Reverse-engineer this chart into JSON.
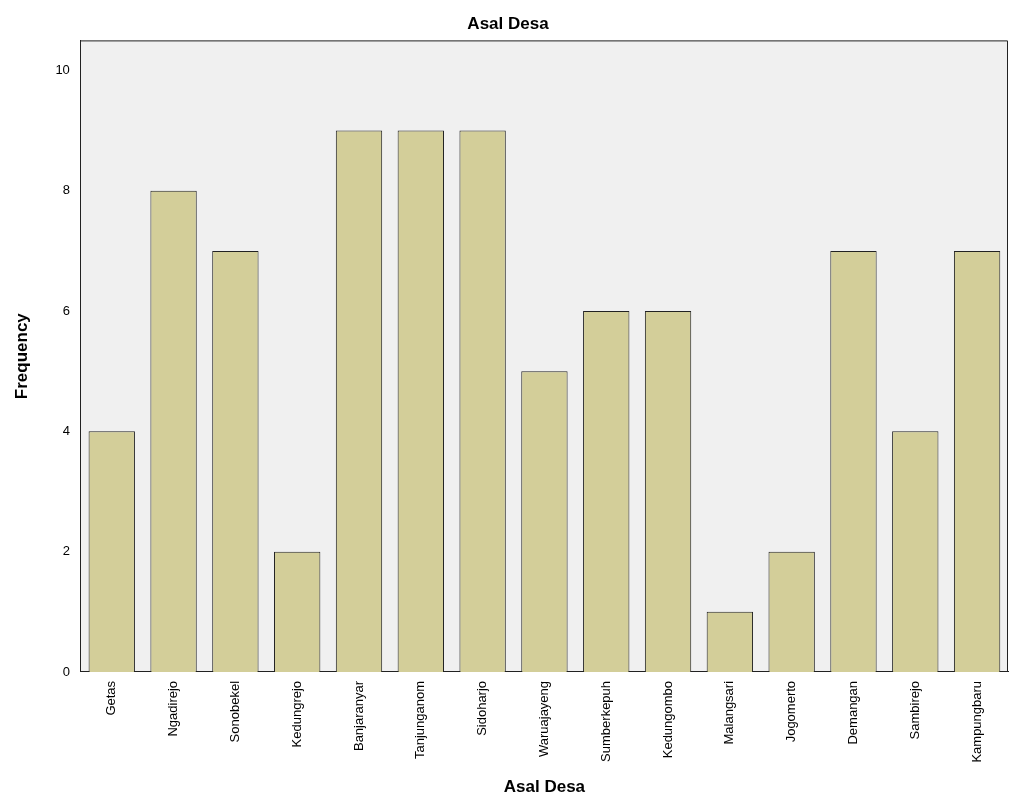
{
  "chart_data": {
    "type": "bar",
    "title": "Asal Desa",
    "xlabel": "Asal Desa",
    "ylabel": "Frequency",
    "categories": [
      "Getas",
      "Ngadirejo",
      "Sonobekel",
      "Kedungrejo",
      "Banjaranyar",
      "Tanjunganom",
      "Sidoharjo",
      "Waruajayeng",
      "Sumberkepuh",
      "Kedungombo",
      "Malangsari",
      "Jogomerto",
      "Demangan",
      "Sambirejo",
      "Kampungbaru"
    ],
    "values": [
      4,
      8,
      7,
      2,
      9,
      9,
      9,
      5,
      6,
      6,
      1,
      2,
      7,
      4,
      7
    ],
    "color": "#d3ce99",
    "ylim": [
      0,
      10.5
    ],
    "yticks": [
      0,
      2,
      4,
      6,
      8,
      10
    ],
    "grid": false,
    "legend": false
  }
}
